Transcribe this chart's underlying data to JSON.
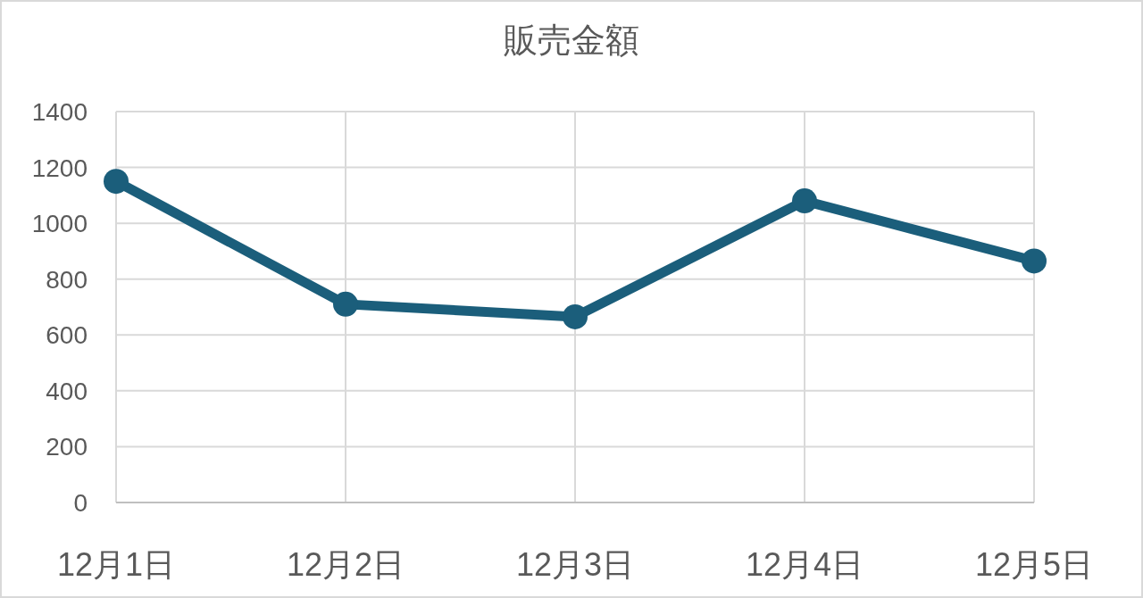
{
  "chart_data": {
    "type": "line",
    "title": "販売金額",
    "categories": [
      "12月1日",
      "12月2日",
      "12月3日",
      "12月4日",
      "12月5日"
    ],
    "series": [
      {
        "color": "#1b5e7b",
        "values": [
          1150,
          710,
          665,
          1080,
          865
        ]
      }
    ],
    "ylim": [
      0,
      1400
    ],
    "yticks": [
      0,
      200,
      400,
      600,
      800,
      1000,
      1200,
      1400
    ],
    "grid": true,
    "marker": "circle"
  }
}
